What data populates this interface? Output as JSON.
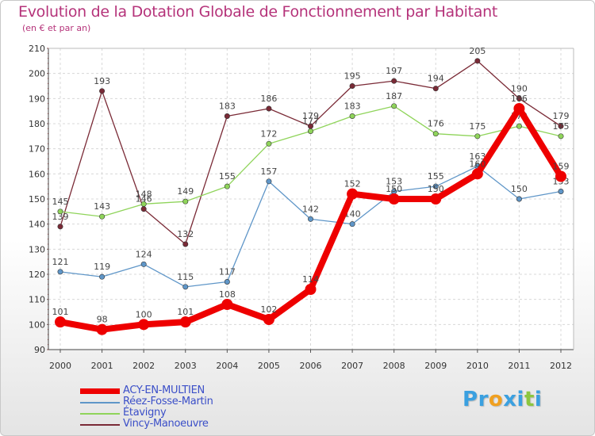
{
  "header": {
    "title": "Evolution de la Dotation Globale de Fonctionnement par Habitant",
    "subtitle": "(en € et par an)"
  },
  "chart_data": {
    "type": "line",
    "title": "Evolution de la Dotation Globale de Fonctionnement par Habitant",
    "subtitle": "(en € et par an)",
    "xlabel": "",
    "ylabel": "",
    "ylim": [
      90,
      210
    ],
    "yticks": [
      90,
      100,
      110,
      120,
      130,
      140,
      150,
      160,
      170,
      180,
      190,
      200,
      210
    ],
    "categories": [
      "2000",
      "2001",
      "2002",
      "2003",
      "2004",
      "2005",
      "2006",
      "2007",
      "2008",
      "2009",
      "2010",
      "2011",
      "2012"
    ],
    "grid": true,
    "legend_position": "bottom-left",
    "series": [
      {
        "name": "Vincy-Manoeuvre",
        "color": "#7a2a36",
        "values": [
          139,
          193,
          146,
          132,
          183,
          186,
          179,
          195,
          197,
          194,
          205,
          190,
          179
        ],
        "labels": [
          "139",
          "193",
          "146",
          "132",
          "183",
          "186",
          "179",
          "195",
          "197",
          "194",
          "205",
          "190",
          "179"
        ]
      },
      {
        "name": "Étavigny",
        "color": "#8fd45a",
        "values": [
          145,
          143,
          148,
          149,
          155,
          172,
          177,
          183,
          187,
          176,
          175,
          179,
          175
        ],
        "labels": [
          "145",
          "143",
          "148",
          "149",
          "155",
          "172",
          "177",
          "183",
          "187",
          "176",
          "175",
          "179",
          "175"
        ]
      },
      {
        "name": "Réez-Fosse-Martin",
        "color": "#5f96c8",
        "values": [
          121,
          119,
          124,
          115,
          117,
          157,
          142,
          140,
          153,
          155,
          163,
          150,
          153
        ],
        "labels": [
          "121",
          "119",
          "124",
          "115",
          "117",
          "157",
          "142",
          "140",
          "153",
          "155",
          "163",
          "150",
          "153"
        ]
      },
      {
        "name": "ACY-EN-MULTIEN",
        "color": "#ee0000",
        "values": [
          101,
          98,
          100,
          101,
          108,
          102,
          114,
          152,
          150,
          150,
          160,
          186,
          159
        ],
        "labels": [
          "101",
          "98",
          "100",
          "101",
          "108",
          "102",
          "114",
          "152",
          "150",
          "150",
          "160",
          "186",
          "159"
        ]
      }
    ]
  },
  "legend": {
    "items": [
      {
        "label": "ACY-EN-MULTIEN",
        "color": "#ee0000"
      },
      {
        "label": "Réez-Fosse-Martin",
        "color": "#5f96c8"
      },
      {
        "label": "Étavigny",
        "color": "#8fd45a"
      },
      {
        "label": "Vincy-Manoeuvre",
        "color": "#7a2a36"
      }
    ]
  },
  "logo": {
    "letters": [
      "P",
      "r",
      "o",
      "x",
      "i",
      "t",
      "i"
    ],
    "colors": [
      "#3aa0e0",
      "#3aa0e0",
      "#f0a020",
      "#3aa0e0",
      "#3aa0e0",
      "#8cc63f",
      "#3aa0e0"
    ]
  }
}
